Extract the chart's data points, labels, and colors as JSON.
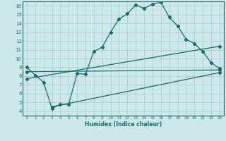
{
  "xlabel": "Humidex (Indice chaleur)",
  "bg_color": "#cde8e8",
  "grid_color": "#aacece",
  "line_color": "#1a6b6b",
  "xlim": [
    -0.5,
    23.5
  ],
  "ylim": [
    3.5,
    16.5
  ],
  "yticks": [
    4,
    5,
    6,
    7,
    8,
    9,
    10,
    11,
    12,
    13,
    14,
    15,
    16
  ],
  "xticks": [
    0,
    1,
    2,
    3,
    4,
    5,
    6,
    7,
    8,
    9,
    10,
    11,
    12,
    13,
    14,
    15,
    16,
    17,
    18,
    19,
    20,
    21,
    22,
    23
  ],
  "curve_x": [
    0,
    1,
    2,
    3,
    4,
    5,
    6,
    7,
    8,
    9,
    10,
    11,
    12,
    13,
    14,
    15,
    16,
    17,
    18,
    19,
    20,
    21,
    22,
    23
  ],
  "curve_y": [
    9.0,
    8.1,
    7.3,
    4.3,
    4.8,
    4.8,
    8.3,
    8.2,
    10.8,
    11.3,
    13.0,
    14.5,
    15.1,
    16.1,
    15.7,
    16.2,
    16.4,
    14.7,
    13.7,
    12.2,
    11.7,
    10.8,
    9.5,
    8.9
  ],
  "line1_x": [
    0,
    23
  ],
  "line1_y": [
    8.5,
    8.7
  ],
  "line2_x": [
    0,
    23
  ],
  "line2_y": [
    7.7,
    11.4
  ],
  "line3_x": [
    3,
    23
  ],
  "line3_y": [
    4.5,
    8.4
  ]
}
